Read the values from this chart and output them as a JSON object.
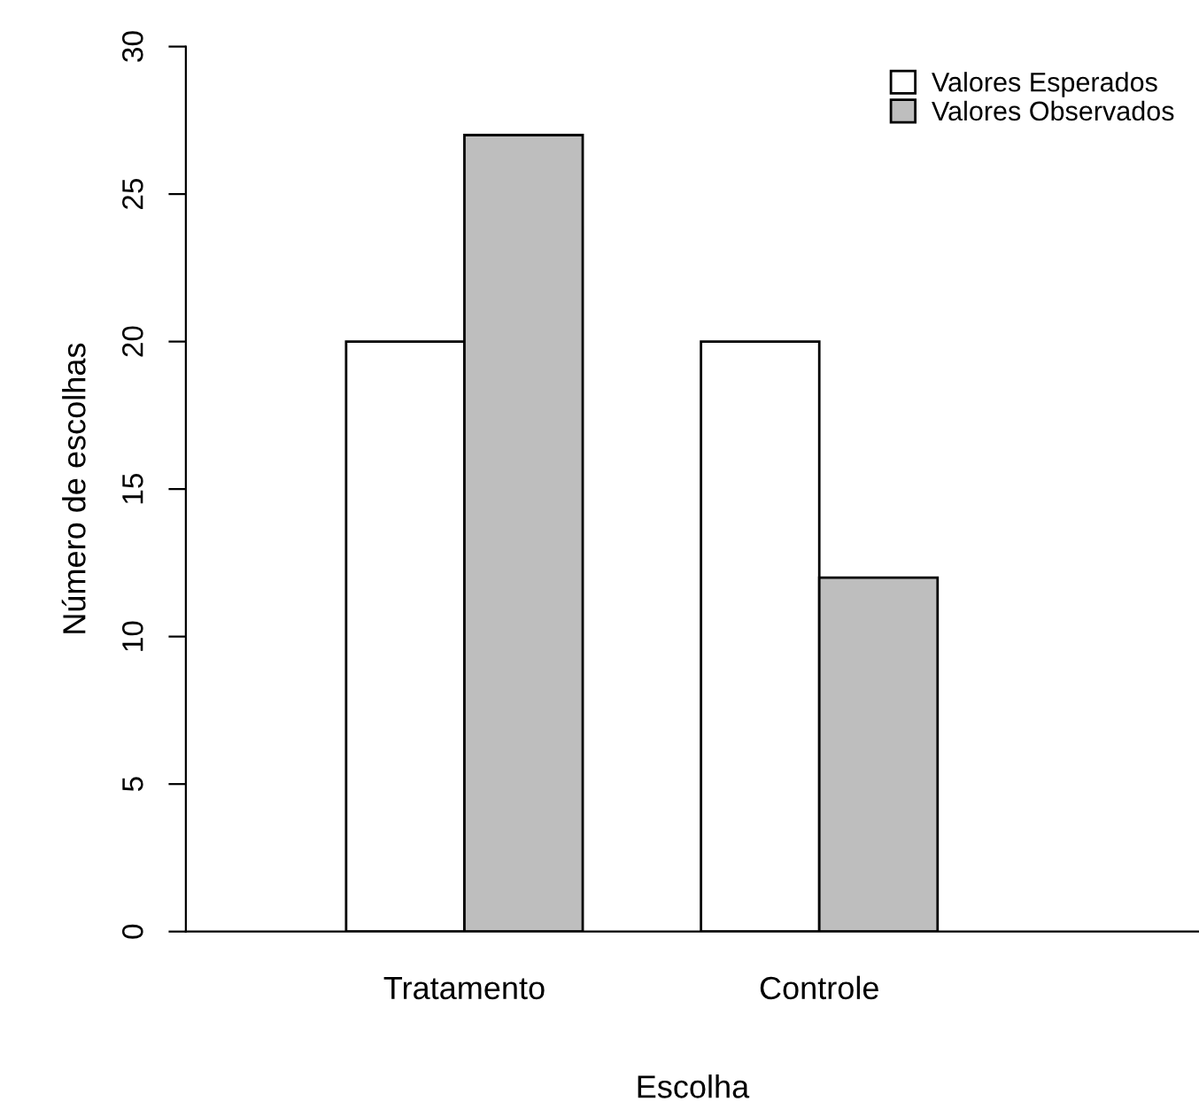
{
  "chart_data": {
    "type": "bar",
    "xlabel": "Escolha",
    "ylabel": "Número de escolhas",
    "categories": [
      "Tratamento",
      "Controle"
    ],
    "series": [
      {
        "name": "Valores Esperados",
        "color": "#ffffff",
        "values": [
          20,
          20
        ]
      },
      {
        "name": "Valores Observados",
        "color": "#bebebe",
        "values": [
          27,
          12
        ]
      }
    ],
    "ylim": [
      0,
      30
    ],
    "yticks": [
      0,
      5,
      10,
      15,
      20,
      25,
      30
    ],
    "grid": false,
    "legend": "top right"
  }
}
